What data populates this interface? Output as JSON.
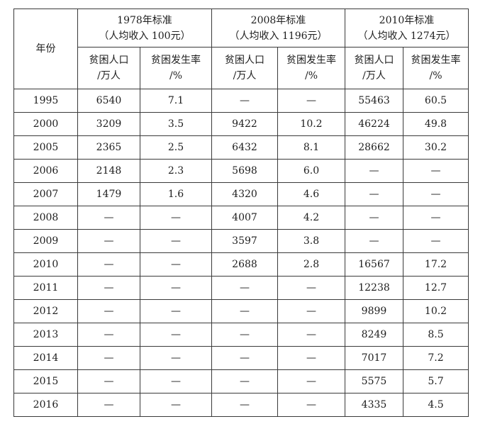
{
  "header": {
    "year_label": "年份",
    "groups": [
      {
        "title": "1978年标准",
        "subtitle": "（人均收入 100元）"
      },
      {
        "title": "2008年标准",
        "subtitle": "（人均收入 1196元）"
      },
      {
        "title": "2010年标准",
        "subtitle": "（人均收入 1274元）"
      }
    ],
    "sub_population": {
      "line1": "贫困人口",
      "line2": "/万人"
    },
    "sub_rate": {
      "line1": "贫困发生率",
      "line2": "/%"
    }
  },
  "rows": [
    {
      "year": "1995",
      "c": [
        "6540",
        "7.1",
        "—",
        "—",
        "55463",
        "60.5"
      ]
    },
    {
      "year": "2000",
      "c": [
        "3209",
        "3.5",
        "9422",
        "10.2",
        "46224",
        "49.8"
      ]
    },
    {
      "year": "2005",
      "c": [
        "2365",
        "2.5",
        "6432",
        "8.1",
        "28662",
        "30.2"
      ]
    },
    {
      "year": "2006",
      "c": [
        "2148",
        "2.3",
        "5698",
        "6.0",
        "—",
        "—"
      ]
    },
    {
      "year": "2007",
      "c": [
        "1479",
        "1.6",
        "4320",
        "4.6",
        "—",
        "—"
      ]
    },
    {
      "year": "2008",
      "c": [
        "—",
        "—",
        "4007",
        "4.2",
        "—",
        "—"
      ]
    },
    {
      "year": "2009",
      "c": [
        "—",
        "—",
        "3597",
        "3.8",
        "—",
        "—"
      ]
    },
    {
      "year": "2010",
      "c": [
        "—",
        "—",
        "2688",
        "2.8",
        "16567",
        "17.2"
      ]
    },
    {
      "year": "2011",
      "c": [
        "—",
        "—",
        "—",
        "—",
        "12238",
        "12.7"
      ]
    },
    {
      "year": "2012",
      "c": [
        "—",
        "—",
        "—",
        "—",
        "9899",
        "10.2"
      ]
    },
    {
      "year": "2013",
      "c": [
        "—",
        "—",
        "—",
        "—",
        "8249",
        "8.5"
      ]
    },
    {
      "year": "2014",
      "c": [
        "—",
        "—",
        "—",
        "—",
        "7017",
        "7.2"
      ]
    },
    {
      "year": "2015",
      "c": [
        "—",
        "—",
        "—",
        "—",
        "5575",
        "5.7"
      ]
    },
    {
      "year": "2016",
      "c": [
        "—",
        "—",
        "—",
        "—",
        "4335",
        "4.5"
      ]
    }
  ]
}
